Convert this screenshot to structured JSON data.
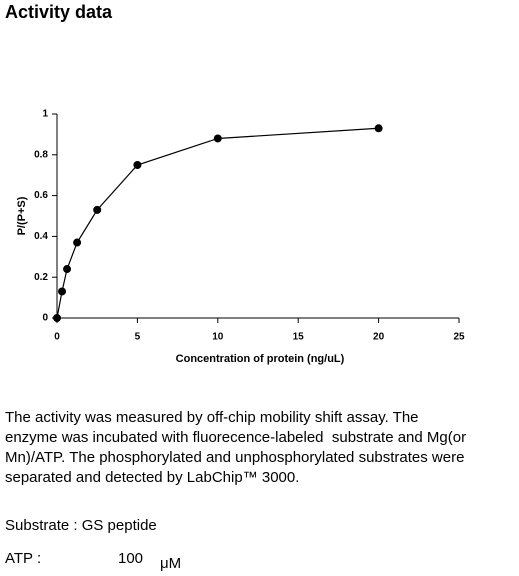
{
  "header": {
    "title": "Activity data"
  },
  "chart_data": {
    "type": "line",
    "x": [
      0,
      0.3125,
      0.625,
      1.25,
      2.5,
      5,
      10,
      20
    ],
    "values": [
      0,
      0.13,
      0.24,
      0.37,
      0.53,
      0.75,
      0.88,
      0.93
    ],
    "color": "#000000",
    "xlim": [
      0,
      25
    ],
    "xticks": [
      0,
      5,
      10,
      15,
      20,
      25
    ],
    "ylim": [
      0,
      1
    ],
    "yticks": [
      0,
      0.2,
      0.4,
      0.6,
      0.8,
      1
    ],
    "xlabel": "Concentration of protein (ng/uL)",
    "ylabel": "P/(P+S)"
  },
  "description": {
    "lines": [
      "The activity was measured by off-chip mobility shift assay. The",
      "enzyme was incubated with fluorecence-labeled  substrate and Mg(or",
      "Mn)/ATP. The phosphorylated and unphosphorylated substrates were",
      "separated and detected by LabChip™ 3000."
    ]
  },
  "conditions": {
    "substrate": "Substrate : GS peptide",
    "atp_label": "ATP :",
    "atp_value": "100",
    "atp_unit": "μM"
  }
}
